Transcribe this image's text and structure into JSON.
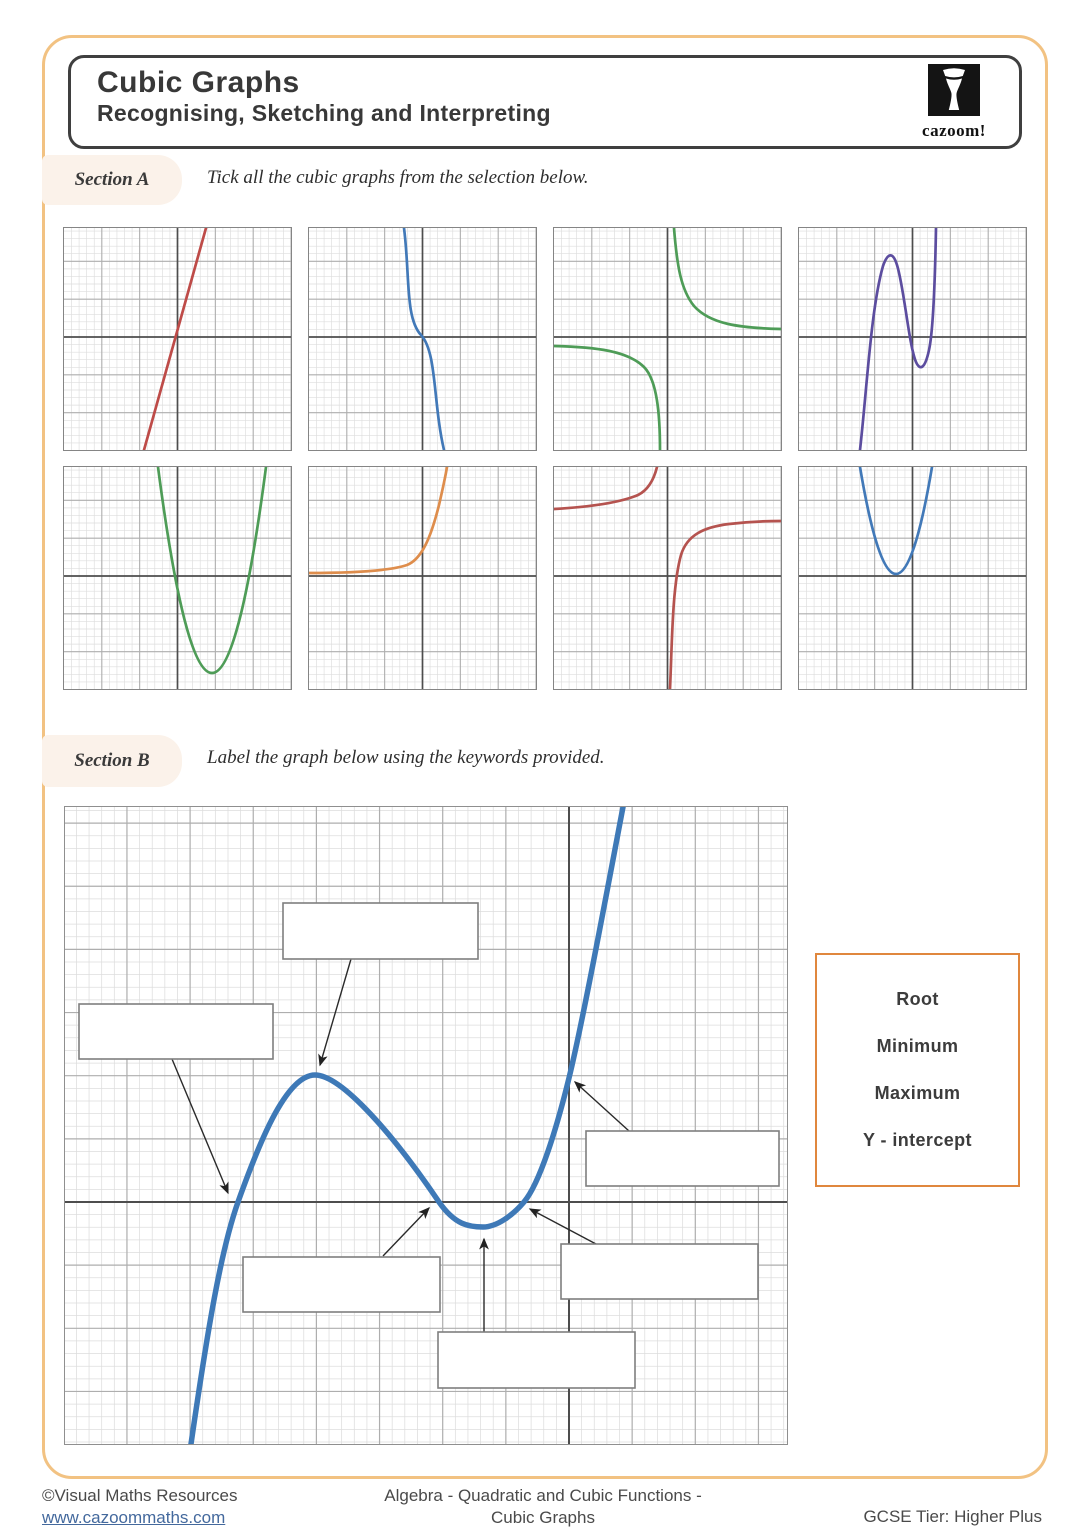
{
  "header": {
    "title": "Cubic Graphs",
    "subtitle": "Recognising, Sketching and Interpreting",
    "logo_text": "cazoom!"
  },
  "section_a": {
    "label": "Section A",
    "instruction": "Tick all the cubic graphs from the selection below.",
    "graphs": [
      {
        "shape": "straight line, steep positive slope through origin",
        "color": "#BE4B48"
      },
      {
        "shape": "negative cubic through origin",
        "color": "#4279B8"
      },
      {
        "shape": "reciprocal hyperbola, branches in quadrants 1 and 3",
        "color": "#4E9C57"
      },
      {
        "shape": "positive cubic with maximum and minimum",
        "color": "#5C4D9F"
      },
      {
        "shape": "positive quadratic parabola, vertex below axis",
        "color": "#4E9C57"
      },
      {
        "shape": "exponential growth curve",
        "color": "#DE8D4C"
      },
      {
        "shape": "reciprocal hyperbola shifted up",
        "color": "#B5534F"
      },
      {
        "shape": "narrow positive quadratic, vertex just above axis",
        "color": "#4279B8"
      }
    ]
  },
  "section_b": {
    "label": "Section B",
    "instruction": "Label the graph below using the keywords provided.",
    "curve_color": "#3E79B7",
    "curve_shape": "positive cubic with three roots, one maximum, one minimum and a y-intercept",
    "keywords": [
      "Root",
      "Minimum",
      "Maximum",
      "Y - intercept"
    ],
    "keywords_border_color": "#E0873E",
    "label_boxes": [
      {
        "value": "",
        "points_to": "maximum"
      },
      {
        "value": "",
        "points_to": "left root"
      },
      {
        "value": "",
        "points_to": "y-intercept"
      },
      {
        "value": "",
        "points_to": "middle root"
      },
      {
        "value": "",
        "points_to": "minimum"
      },
      {
        "value": "",
        "points_to": "right root"
      }
    ]
  },
  "footer": {
    "copyright": "©Visual Maths Resources",
    "website": "www.cazoommaths.com",
    "topic_line1": "Algebra - Quadratic and Cubic Functions -",
    "topic_line2": "Cubic Graphs",
    "tier": "GCSE Tier: Higher Plus"
  },
  "colors": {
    "page_border": "#F2C282",
    "header_border": "#3F3F3F",
    "section_pill": "#FBF2EA"
  }
}
